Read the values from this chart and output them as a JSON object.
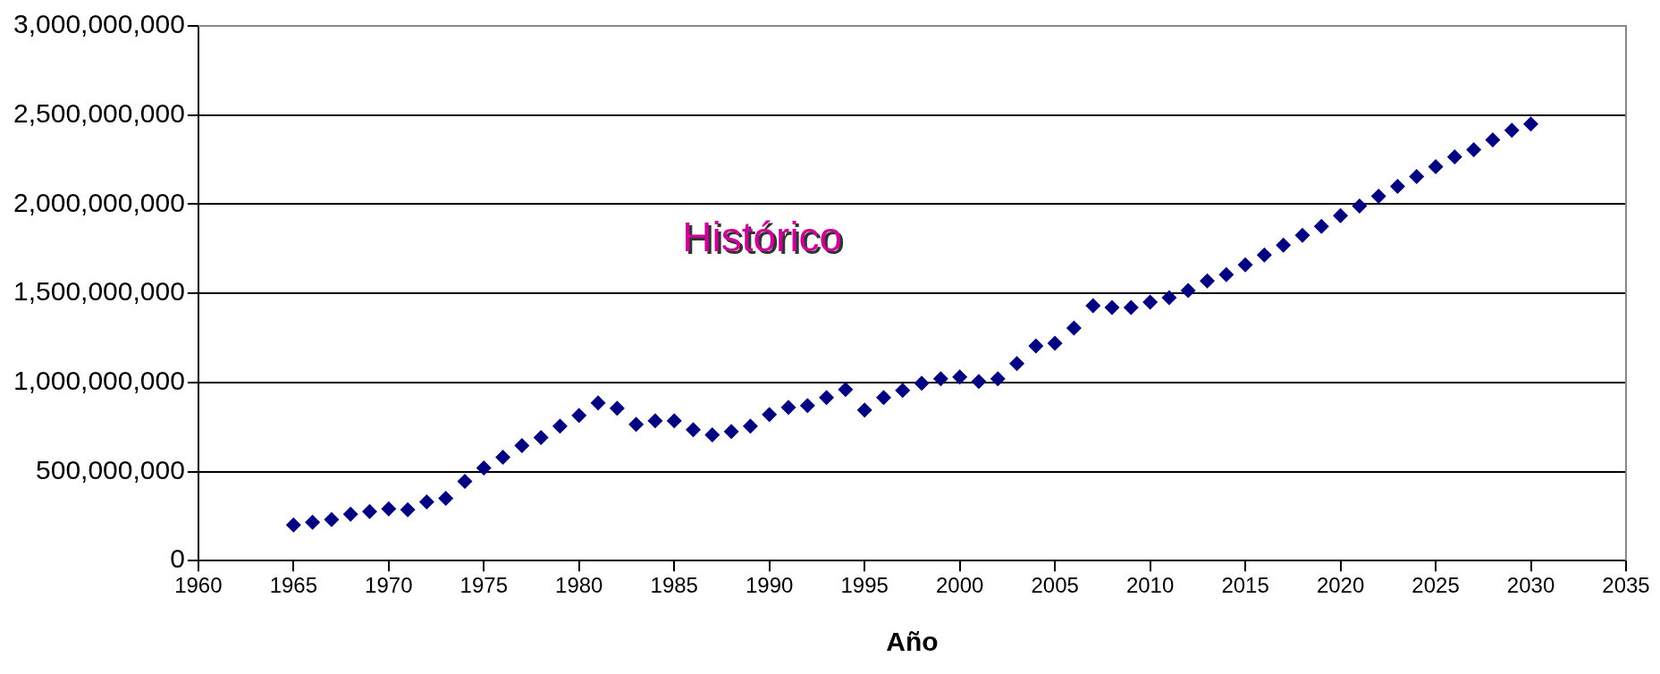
{
  "chart_data": {
    "type": "scatter",
    "xlabel": "Año",
    "marker": "diamond",
    "grid": "y",
    "legend": false,
    "annotations": [
      "Histórico"
    ],
    "x": [
      1965,
      1966,
      1967,
      1968,
      1969,
      1970,
      1971,
      1972,
      1973,
      1974,
      1975,
      1976,
      1977,
      1978,
      1979,
      1980,
      1981,
      1982,
      1983,
      1984,
      1985,
      1986,
      1987,
      1988,
      1989,
      1990,
      1991,
      1992,
      1993,
      1994,
      1995,
      1996,
      1997,
      1998,
      1999,
      2000,
      2001,
      2002,
      2003,
      2004,
      2005,
      2006,
      2007,
      2008,
      2009,
      2010,
      2011,
      2012,
      2013,
      2014,
      2015,
      2016,
      2017,
      2018,
      2019,
      2020,
      2021,
      2022,
      2023,
      2024,
      2025,
      2026,
      2027,
      2028,
      2029,
      2030
    ],
    "series": [
      {
        "color": "#000080",
        "values": [
          200000000,
          215000000,
          230000000,
          260000000,
          275000000,
          290000000,
          285000000,
          330000000,
          350000000,
          445000000,
          520000000,
          580000000,
          645000000,
          690000000,
          755000000,
          815000000,
          885000000,
          855000000,
          765000000,
          785000000,
          785000000,
          735000000,
          705000000,
          725000000,
          755000000,
          820000000,
          860000000,
          870000000,
          915000000,
          960000000,
          845000000,
          915000000,
          955000000,
          995000000,
          1020000000,
          1030000000,
          1005000000,
          1020000000,
          1105000000,
          1205000000,
          1220000000,
          1305000000,
          1430000000,
          1420000000,
          1420000000,
          1450000000,
          1475000000,
          1515000000,
          1570000000,
          1605000000,
          1660000000,
          1715000000,
          1770000000,
          1825000000,
          1875000000,
          1935000000,
          1990000000,
          2045000000,
          2100000000,
          2155000000,
          2210000000,
          2265000000,
          2305000000,
          2360000000,
          2415000000,
          2450000000
        ]
      }
    ],
    "xlim": [
      1960,
      2035
    ],
    "xticks": [
      1960,
      1965,
      1970,
      1975,
      1980,
      1985,
      1990,
      1995,
      2000,
      2005,
      2010,
      2015,
      2020,
      2025,
      2030,
      2035
    ],
    "ylim": [
      0,
      3000000000
    ],
    "yticks": [
      {
        "value": 0,
        "label": "0"
      },
      {
        "value": 500000000,
        "label": "500,000,000"
      },
      {
        "value": 1000000000,
        "label": "1,000,000,000"
      },
      {
        "value": 1500000000,
        "label": "1,500,000,000"
      },
      {
        "value": 2000000000,
        "label": "2,000,000,000"
      },
      {
        "value": 2500000000,
        "label": "2,500,000,000"
      },
      {
        "value": 3000000000,
        "label": "3,000,000,000"
      }
    ]
  }
}
